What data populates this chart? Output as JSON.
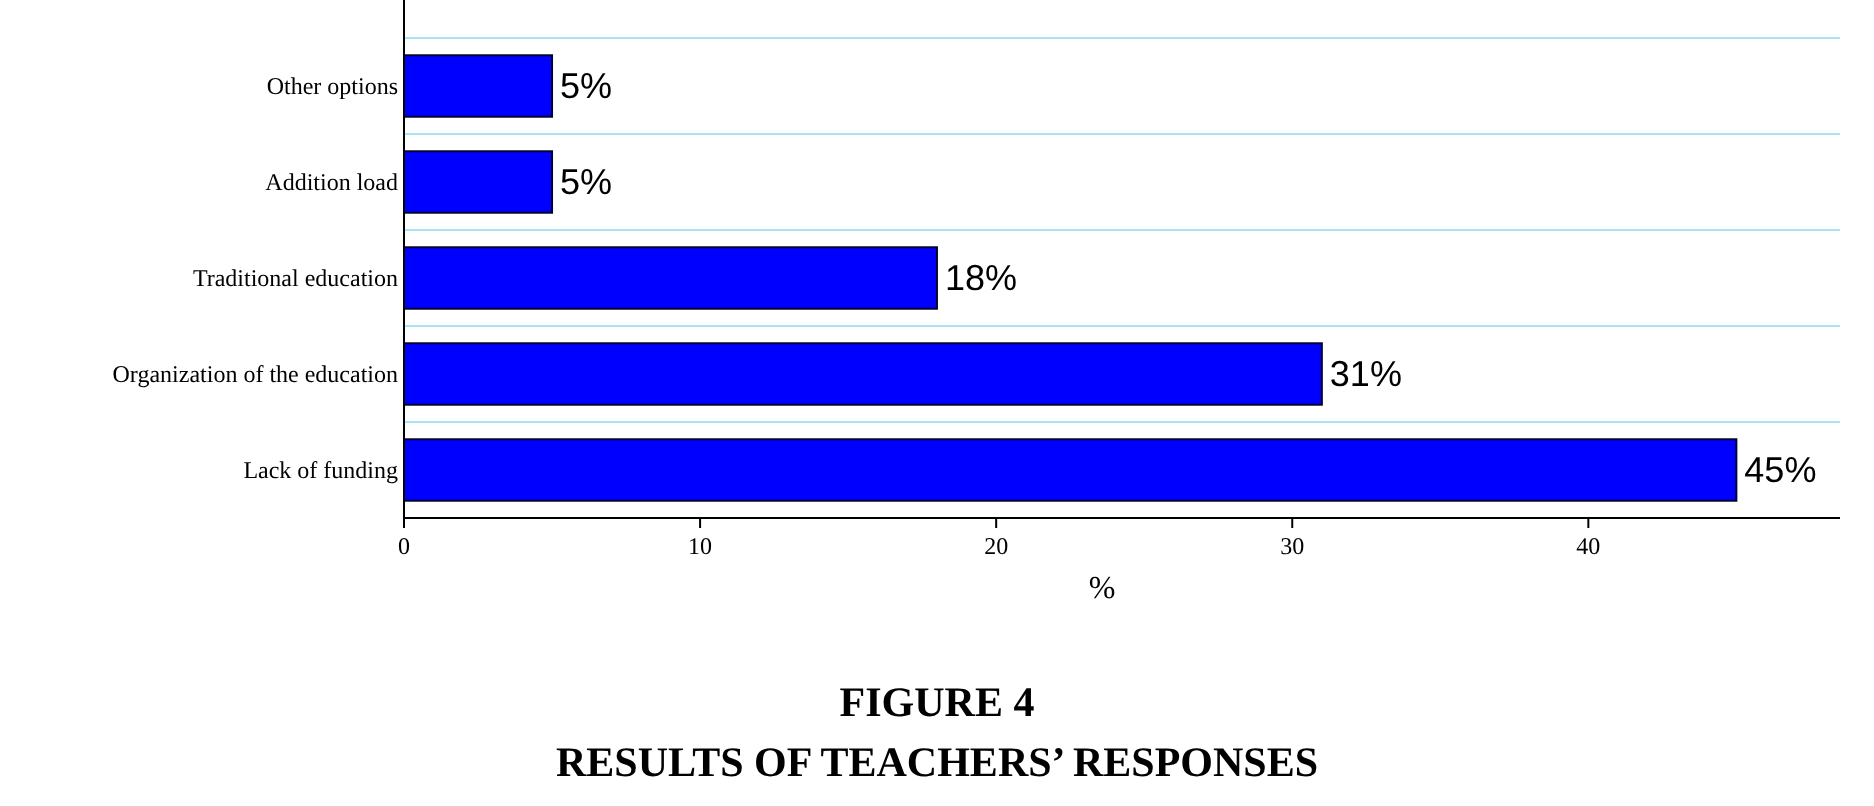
{
  "chart_data": {
    "type": "bar",
    "orientation": "horizontal",
    "title": "FIGURE 4",
    "subtitle": "RESULTS OF TEACHERS’ RESPONSES",
    "xlabel": "%",
    "categories": [
      "Other options",
      "Addition load",
      "Traditional education",
      "Organization of the education",
      "Lack of funding"
    ],
    "values": [
      5,
      5,
      18,
      31,
      45
    ],
    "color": "#0000ff",
    "value_labels": [
      "5%",
      "5%",
      "18%",
      "31%",
      "45%"
    ],
    "xlim": [
      0,
      48.5
    ],
    "xticks": [
      0,
      10,
      20,
      30,
      40
    ],
    "grid": "y"
  }
}
